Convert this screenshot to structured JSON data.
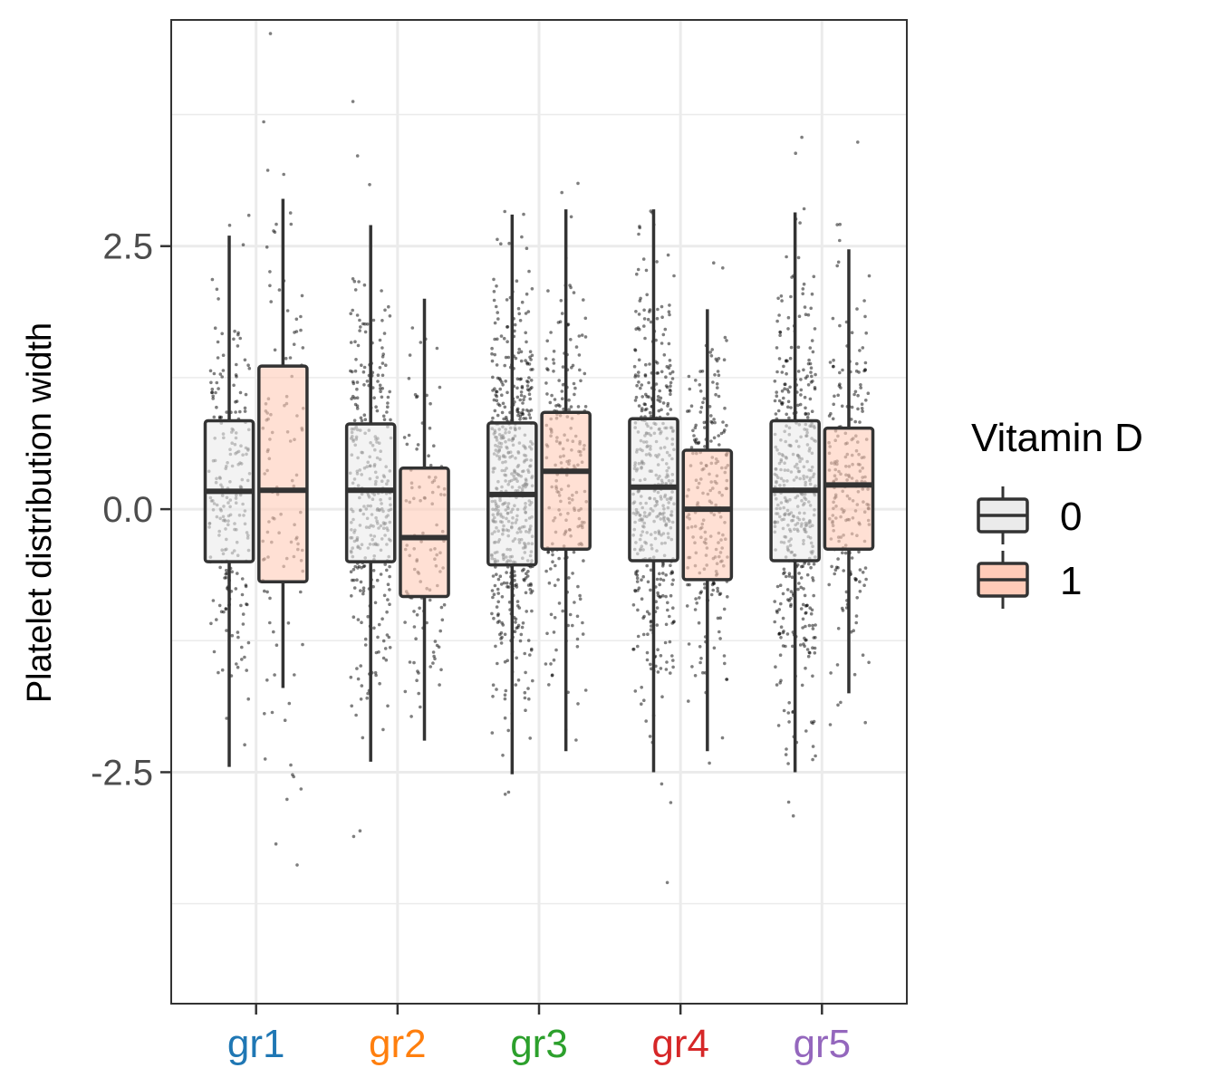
{
  "chart_data": {
    "type": "box",
    "title": "",
    "xlabel": "",
    "ylabel": "Platelet distribution width",
    "ylim": [
      -4.7,
      4.65
    ],
    "yticks": [
      -2.5,
      0.0,
      2.5
    ],
    "ytick_labels": [
      "-2.5",
      "0.0",
      "2.5"
    ],
    "grid": true,
    "categories": [
      "gr1",
      "gr2",
      "gr3",
      "gr4",
      "gr5"
    ],
    "category_colors": [
      "#1f77b4",
      "#ff7f0e",
      "#2ca02c",
      "#d62728",
      "#9467bd"
    ],
    "legend": {
      "title": "Vitamin D",
      "position": "right",
      "entries": [
        {
          "label": "0",
          "fill": "#ebebeb"
        },
        {
          "label": "1",
          "fill": "#ffcbb8"
        }
      ]
    },
    "series": [
      {
        "name": "0",
        "fill": "#ebebeb",
        "point_density": [
          2,
          3,
          5,
          4,
          4
        ],
        "boxes": [
          {
            "whisker_low": -2.45,
            "q1": -0.5,
            "median": 0.17,
            "q3": 0.84,
            "whisker_high": 2.6
          },
          {
            "whisker_low": -2.4,
            "q1": -0.5,
            "median": 0.18,
            "q3": 0.81,
            "whisker_high": 2.7
          },
          {
            "whisker_low": -2.52,
            "q1": -0.53,
            "median": 0.14,
            "q3": 0.82,
            "whisker_high": 2.8
          },
          {
            "whisker_low": -2.5,
            "q1": -0.49,
            "median": 0.21,
            "q3": 0.86,
            "whisker_high": 2.85
          },
          {
            "whisker_low": -2.5,
            "q1": -0.49,
            "median": 0.18,
            "q3": 0.84,
            "whisker_high": 2.82
          }
        ]
      },
      {
        "name": "1",
        "fill": "#ffcbb8",
        "point_density": [
          1,
          1,
          2,
          2,
          2
        ],
        "boxes": [
          {
            "whisker_low": -1.7,
            "q1": -0.69,
            "median": 0.18,
            "q3": 1.36,
            "whisker_high": 2.95
          },
          {
            "whisker_low": -2.2,
            "q1": -0.83,
            "median": -0.27,
            "q3": 0.39,
            "whisker_high": 2.0
          },
          {
            "whisker_low": -2.3,
            "q1": -0.38,
            "median": 0.36,
            "q3": 0.92,
            "whisker_high": 2.85
          },
          {
            "whisker_low": -2.3,
            "q1": -0.67,
            "median": 0.0,
            "q3": 0.56,
            "whisker_high": 1.9
          },
          {
            "whisker_low": -1.75,
            "q1": -0.38,
            "median": 0.23,
            "q3": 0.77,
            "whisker_high": 2.47
          }
        ]
      }
    ]
  }
}
